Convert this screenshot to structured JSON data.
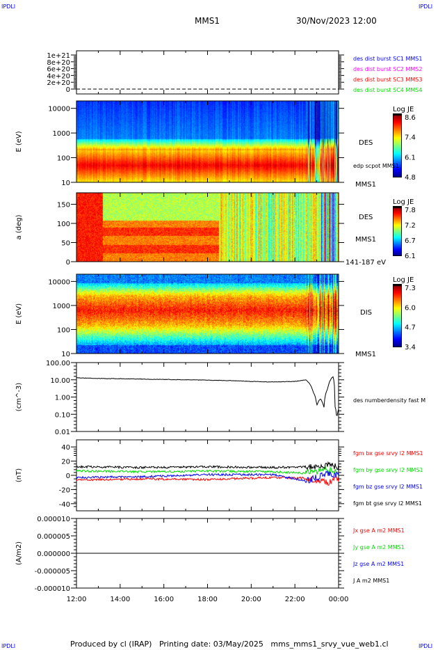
{
  "corner_labels": {
    "text": "IPDLI",
    "color": "#0000ff"
  },
  "header": {
    "spacecraft": "MMS1",
    "datetime": "30/Nov/2023 12:00"
  },
  "footer": {
    "text": "Produced by cl (IRAP)   Printing date: 03/May/2025   mms_mms1_srvy_vue_web1.cl"
  },
  "time_axis": {
    "ticks": [
      "12:00",
      "14:00",
      "16:00",
      "18:00",
      "20:00",
      "22:00",
      "00:00"
    ]
  },
  "chart_data": [
    {
      "type": "line",
      "panel": "burst",
      "ylabel": "",
      "yticks": [
        "1e+21",
        "8e+20",
        "6e+20",
        "4e+20",
        "2e+20",
        "0"
      ],
      "ylim": [
        0,
        1e+21
      ],
      "legend": [
        {
          "label": "des dist burst SC1 MMS1",
          "color": "#0000ff"
        },
        {
          "label": "des dist burst SC2 MMS2",
          "color": "#ff00ff"
        },
        {
          "label": "des dist burst SC3 MMS3",
          "color": "#ff0000"
        },
        {
          "label": "des dist burst SC4 MMS4",
          "color": "#00dd00"
        }
      ],
      "series_value": 0,
      "line_style": "dashed"
    },
    {
      "type": "heatmap",
      "panel": "des-energy",
      "ylabel": "E (eV)",
      "yticks": [
        "10000",
        "1000",
        "100",
        "10"
      ],
      "ylim": [
        10,
        20000
      ],
      "yscale": "log",
      "right_labels": [
        "DES",
        "edp scpot MMS1",
        "MMS1"
      ],
      "colorbar": {
        "title": "Log JE",
        "ticks": [
          "8.6",
          "7.4",
          "6.1",
          "4.8"
        ],
        "range": [
          4.8,
          8.6
        ]
      }
    },
    {
      "type": "heatmap",
      "panel": "des-pitch",
      "ylabel": "a (deg)",
      "yticks": [
        "150",
        "100",
        "50",
        "0"
      ],
      "ylim": [
        0,
        180
      ],
      "right_labels": [
        "DES",
        "MMS1",
        "141-187 eV"
      ],
      "colorbar": {
        "title": "Log JE",
        "ticks": [
          "7.8",
          "7.2",
          "6.7",
          "6.1"
        ],
        "range": [
          6.1,
          7.8
        ]
      }
    },
    {
      "type": "heatmap",
      "panel": "dis-energy",
      "ylabel": "E (eV)",
      "yticks": [
        "10000",
        "1000",
        "100",
        "10"
      ],
      "ylim": [
        10,
        20000
      ],
      "yscale": "log",
      "right_labels": [
        "DIS",
        "MMS1"
      ],
      "colorbar": {
        "title": "Log JE",
        "ticks": [
          "7.3",
          "6.0",
          "4.7",
          "3.4"
        ],
        "range": [
          3.4,
          7.3
        ]
      }
    },
    {
      "type": "line",
      "panel": "density",
      "ylabel": "(cm^-3)",
      "yticks": [
        "100.00",
        "10.00",
        "1.00",
        "0.10",
        "0.01"
      ],
      "ylim": [
        0.01,
        100
      ],
      "yscale": "log",
      "series": [
        {
          "name": "des numberdensity fast M",
          "color": "#000000",
          "x": [
            "12:00",
            "13:00",
            "14:00",
            "15:00",
            "16:00",
            "17:00",
            "18:00",
            "19:00",
            "20:00",
            "21:00",
            "22:00",
            "22:30",
            "22:50",
            "23:00",
            "23:10",
            "23:20",
            "23:30",
            "23:40",
            "23:45",
            "23:50",
            "23:55",
            "00:00"
          ],
          "y": [
            13,
            12,
            11.5,
            11,
            10.5,
            10,
            9.5,
            9,
            8,
            7.5,
            8,
            10,
            2,
            0.3,
            0.8,
            0.25,
            3,
            12,
            15,
            0.3,
            0.05,
            0.2
          ]
        }
      ]
    },
    {
      "type": "line",
      "panel": "bfield",
      "ylabel": "(nT)",
      "yticks": [
        "40",
        "20",
        "0",
        "-20",
        "-40"
      ],
      "ylim": [
        -50,
        50
      ],
      "series": [
        {
          "name": "fgm bx gse srvy l2 MMS1",
          "color": "#ff0000",
          "x": [
            "12:00",
            "15:00",
            "18:00",
            "21:00",
            "22:30",
            "23:30",
            "00:00"
          ],
          "y": [
            -7,
            -5,
            -6,
            -3,
            -4,
            -10,
            -5
          ]
        },
        {
          "name": "fgm by gse srvy l2 MMS1",
          "color": "#00dd00",
          "x": [
            "12:00",
            "15:00",
            "18:00",
            "21:00",
            "22:30",
            "23:30",
            "00:00"
          ],
          "y": [
            6,
            5,
            6,
            5,
            3,
            8,
            4
          ]
        },
        {
          "name": "fgm bz gse srvy l2 MMS1",
          "color": "#0000ff",
          "x": [
            "12:00",
            "15:00",
            "18:00",
            "21:00",
            "22:30",
            "23:30",
            "00:00"
          ],
          "y": [
            -3,
            -2,
            1,
            1,
            -8,
            2,
            0
          ]
        },
        {
          "name": "fgm bt gse srvy l2 MMS1",
          "color": "#000000",
          "x": [
            "12:00",
            "15:00",
            "18:00",
            "21:00",
            "22:30",
            "23:30",
            "00:00"
          ],
          "y": [
            12,
            11,
            12,
            11,
            12,
            14,
            12
          ]
        }
      ]
    },
    {
      "type": "line",
      "panel": "current",
      "ylabel": "(A/m2)",
      "yticks": [
        "0.000010",
        "0.000005",
        "0.000000",
        "-0.000005",
        "-0.000010"
      ],
      "ylim": [
        -1e-05,
        1e-05
      ],
      "series": [
        {
          "name": "Jx gse A m2 MMS1",
          "color": "#ff0000",
          "x": [
            "12:00",
            "00:00"
          ],
          "y": [
            0,
            0
          ]
        },
        {
          "name": "Jy gse A m2 MMS1",
          "color": "#00dd00",
          "x": [
            "12:00",
            "00:00"
          ],
          "y": [
            0,
            0
          ]
        },
        {
          "name": "Jz gse A m2 MMS1",
          "color": "#0000ff",
          "x": [
            "12:00",
            "00:00"
          ],
          "y": [
            0,
            0
          ]
        },
        {
          "name": "J A m2 MMS1",
          "color": "#000000",
          "x": [
            "12:00",
            "00:00"
          ],
          "y": [
            0,
            0
          ]
        }
      ]
    }
  ]
}
